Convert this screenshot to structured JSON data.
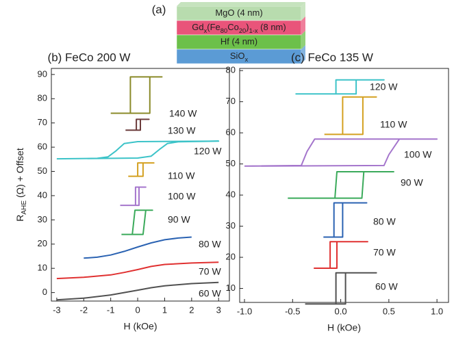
{
  "stack": {
    "label": "(a)",
    "layers": [
      {
        "color": "#b8dcae",
        "segments": [
          {
            "text": "MgO (4 nm)"
          }
        ]
      },
      {
        "color": "#e9547a",
        "segments": [
          {
            "text": "Gd"
          },
          {
            "text": "x",
            "sub": true
          },
          {
            "text": "(Fe"
          },
          {
            "text": "80",
            "sub": true
          },
          {
            "text": "Co"
          },
          {
            "text": "20",
            "sub": true
          },
          {
            "text": ")"
          },
          {
            "text": "1-x",
            "sub": true
          },
          {
            "text": " (8 nm)"
          }
        ]
      },
      {
        "color": "#6cc04a",
        "segments": [
          {
            "text": "Hf (4 nm)"
          }
        ]
      },
      {
        "color": "#5b9bd5",
        "segments": [
          {
            "text": "SiO"
          },
          {
            "text": "x",
            "sub": true
          }
        ]
      }
    ]
  },
  "chart_data": [
    {
      "type": "line",
      "title": "(b)  FeCo 200 W",
      "xlabel": "H (kOe)",
      "ylabel": [
        {
          "text": "R"
        },
        {
          "text": "AHE",
          "sub": true
        },
        {
          "text": " (Ω) + Offset"
        }
      ],
      "xlim": [
        -3.2,
        3.4
      ],
      "ylim": [
        -3.5,
        92.5
      ],
      "xticks": [
        -3,
        -2,
        -1,
        0,
        1,
        2,
        3
      ],
      "yticks": [
        0,
        10,
        20,
        30,
        40,
        50,
        60,
        70,
        80,
        90
      ],
      "series": [
        {
          "name": "140 W",
          "color": "#8a8a28",
          "x": [
            -1.0,
            0.45,
            0.45,
            0.9,
            -0.27,
            -0.27,
            -1.0
          ],
          "y": [
            74,
            74,
            89,
            89,
            89,
            74,
            74
          ]
        },
        {
          "name": "130 W",
          "color": "#6b3b3b",
          "x": [
            -0.45,
            0.1,
            0.1,
            0.42,
            -0.05,
            -0.05,
            -0.45
          ],
          "y": [
            67,
            67,
            71.5,
            71.5,
            71.5,
            67,
            67
          ]
        },
        {
          "name": "120 W",
          "color": "#3cc3c8",
          "x": [
            -3,
            0,
            0.5,
            0.8,
            1.1,
            1.5,
            3,
            0,
            -0.5,
            -0.8,
            -1.1,
            -1.5,
            -3
          ],
          "y": [
            55.2,
            55.5,
            56.3,
            59,
            61.5,
            62.2,
            62.5,
            62.3,
            61.5,
            58.5,
            56,
            55.4,
            55.2
          ]
        },
        {
          "name": "110 W",
          "color": "#d4a020",
          "x": [
            -0.35,
            0.2,
            0.2,
            0.6,
            0,
            0,
            -0.35
          ],
          "y": [
            48,
            48,
            53.5,
            53.5,
            53.5,
            48,
            48
          ]
        },
        {
          "name": "100 W",
          "color": "#a475cc",
          "x": [
            -0.65,
            0.05,
            0.05,
            0.3,
            -0.08,
            -0.08,
            -0.65
          ],
          "y": [
            36,
            36,
            43.5,
            43.5,
            43.5,
            36,
            36
          ]
        },
        {
          "name": "90 W",
          "color": "#3aaa5a",
          "x": [
            -0.6,
            0.2,
            0.3,
            0.55,
            -0.1,
            -0.2,
            -0.6
          ],
          "y": [
            24,
            24,
            34,
            34,
            34,
            24,
            24
          ]
        },
        {
          "name": "80 W",
          "color": "#2a62b2",
          "x": [
            -2,
            -1.5,
            -1,
            -0.5,
            0,
            0.5,
            1,
            1.5,
            2
          ],
          "y": [
            14.2,
            14.6,
            15.5,
            17,
            18.8,
            20.5,
            21.8,
            22.5,
            22.9
          ]
        },
        {
          "name": "70 W",
          "color": "#e03030",
          "x": [
            -3,
            -2,
            -1,
            -0.5,
            0,
            0.5,
            1,
            2,
            3
          ],
          "y": [
            5.8,
            6.3,
            7.3,
            8.3,
            9.5,
            10.8,
            11.6,
            12.2,
            12.5
          ]
        },
        {
          "name": "60 W",
          "color": "#505050",
          "x": [
            -3,
            -2,
            -1,
            -0.5,
            0,
            0.5,
            1,
            2,
            3
          ],
          "y": [
            -3,
            -2.3,
            -1,
            0,
            1,
            2,
            2.8,
            3.7,
            4.2
          ]
        }
      ]
    },
    {
      "type": "line",
      "title": "(c)  FeCo 135 W",
      "xlabel": "H (kOe)",
      "xlim": [
        -1.05,
        1.12
      ],
      "ylim": [
        5.5,
        80.7
      ],
      "xticks": [
        {
          "value": -1,
          "label": "-1.0"
        },
        -0.5,
        {
          "value": 0,
          "label": "0.0"
        },
        0.5,
        {
          "value": 1,
          "label": "1.0"
        }
      ],
      "yticks": [
        10,
        20,
        30,
        40,
        50,
        60,
        70,
        80
      ],
      "series": [
        {
          "name": "120 W",
          "color": "#3cc3c8",
          "x": [
            -0.47,
            0.16,
            0.16,
            0.45,
            -0.05,
            -0.05,
            -0.47
          ],
          "y": [
            72.5,
            72.5,
            77,
            77,
            77,
            72.5,
            72.5
          ]
        },
        {
          "name": "110 W",
          "color": "#d4a020",
          "x": [
            -0.17,
            0.23,
            0.23,
            0.37,
            0.02,
            0.02,
            -0.17
          ],
          "y": [
            59.5,
            59.5,
            71.5,
            71.5,
            71.5,
            59.5,
            59.5
          ]
        },
        {
          "name": "100 W",
          "color": "#a475cc",
          "x": [
            -1,
            0.45,
            0.5,
            0.61,
            1,
            -0.27,
            -0.35,
            -0.41,
            -1
          ],
          "y": [
            49.3,
            49.5,
            53,
            58,
            58,
            58,
            54,
            49.5,
            49.3
          ]
        },
        {
          "name": "90 W",
          "color": "#3aaa5a",
          "x": [
            -0.55,
            0.22,
            0.24,
            0.55,
            -0.04,
            -0.06,
            -0.55
          ],
          "y": [
            39,
            39,
            47.5,
            47.5,
            47.5,
            39,
            39
          ]
        },
        {
          "name": "80 W",
          "color": "#2a62b2",
          "x": [
            -0.18,
            0.02,
            0.02,
            0.27,
            -0.07,
            -0.07,
            -0.18
          ],
          "y": [
            26.5,
            26.5,
            37.5,
            37.5,
            37.5,
            26.5,
            26.5
          ]
        },
        {
          "name": "70 W",
          "color": "#e03030",
          "x": [
            -0.28,
            -0.04,
            -0.04,
            0.28,
            -0.11,
            -0.11,
            -0.28
          ],
          "y": [
            16.5,
            16.5,
            25,
            25,
            25,
            16.5,
            16.5
          ]
        },
        {
          "name": "60 W",
          "color": "#505050",
          "x": [
            -0.37,
            0.05,
            0.05,
            0.37,
            -0.05,
            -0.05,
            -0.37
          ],
          "y": [
            5,
            5,
            15,
            15,
            15,
            5,
            5
          ]
        }
      ]
    }
  ]
}
